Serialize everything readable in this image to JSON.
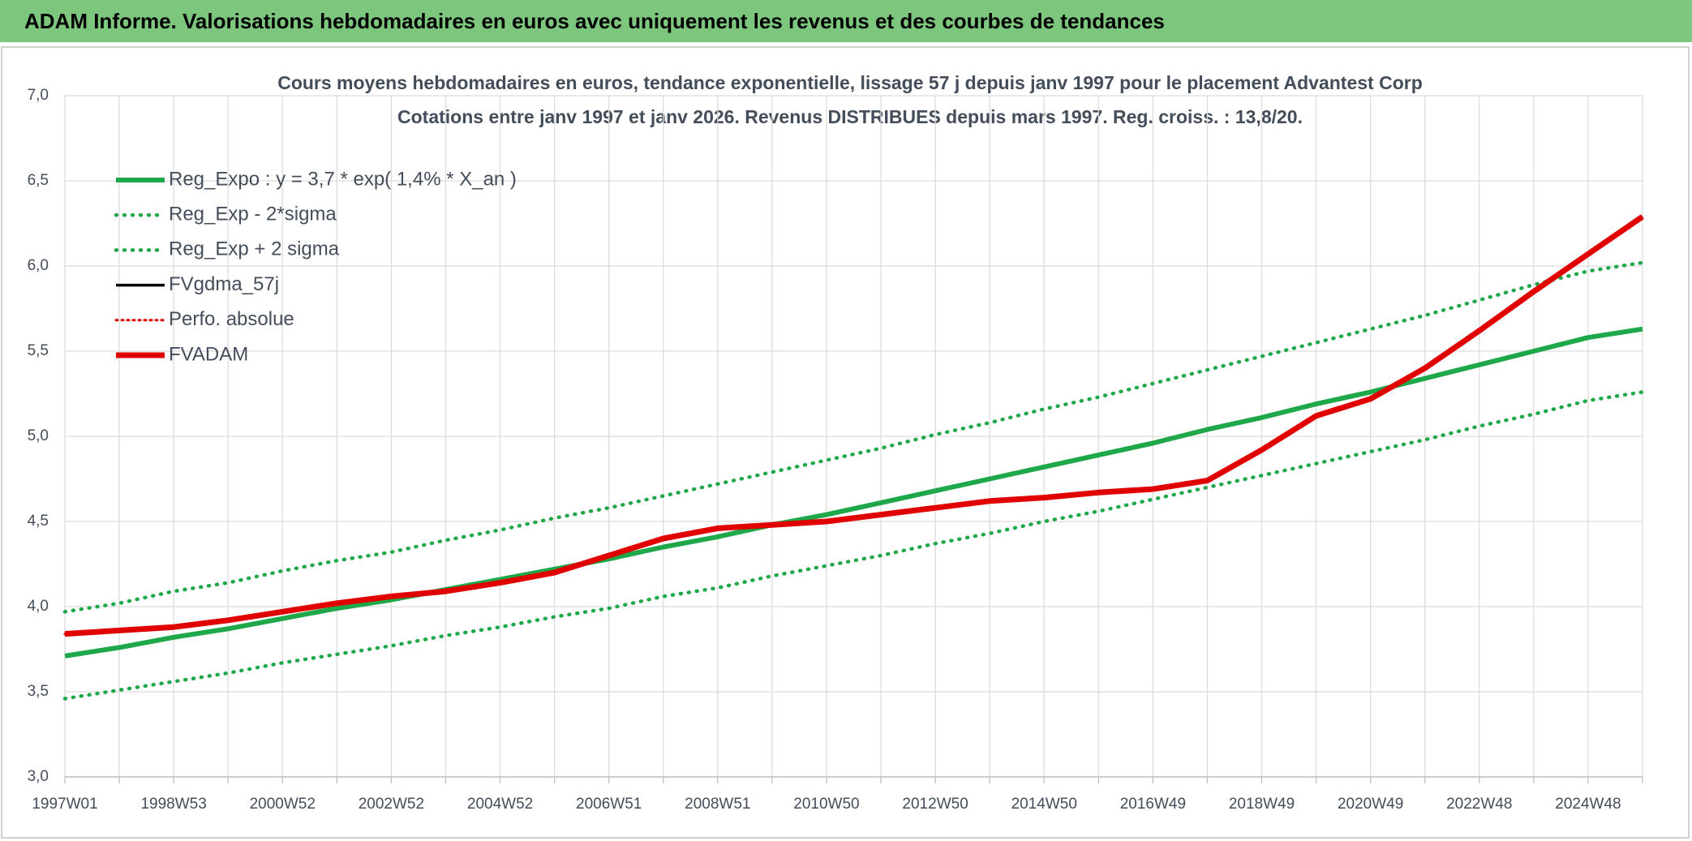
{
  "chart_data": {
    "type": "line",
    "header": "ADAM Informe. Valorisations hebdomadaires en euros avec uniquement les revenus et des courbes de tendances",
    "title": "Cours moyens hebdomadaires en euros, tendance exponentielle, lissage 57 j depuis janv 1997 pour le placement Advantest Corp",
    "subtitle": "Cotations entre janv 1997 et janv 2026. Revenus DISTRIBUES depuis mars 1997. Reg. croiss. : 13,8/20.",
    "categories": [
      "1997W01",
      null,
      "1998W53",
      null,
      "2000W52",
      null,
      "2002W52",
      null,
      "2004W52",
      null,
      "2006W51",
      null,
      "2008W51",
      null,
      "2010W50",
      null,
      "2012W50",
      null,
      "2014W50",
      null,
      "2016W49",
      null,
      "2018W49",
      null,
      "2020W49",
      null,
      "2022W48",
      null,
      "2024W48",
      null
    ],
    "ylim": [
      3,
      7
    ],
    "yticks": [
      {
        "value": 3,
        "label": "3,0"
      },
      {
        "value": 3.5,
        "label": "3,5"
      },
      {
        "value": 4,
        "label": "4,0"
      },
      {
        "value": 4.5,
        "label": "4,5"
      },
      {
        "value": 5,
        "label": "5,0"
      },
      {
        "value": 5.5,
        "label": "5,5"
      },
      {
        "value": 6,
        "label": "6,0"
      },
      {
        "value": 6.5,
        "label": "6,5"
      },
      {
        "value": 7,
        "label": "7,0"
      }
    ],
    "grid": true,
    "series": [
      {
        "name": "Reg_Expo : y = 3,7 * exp( 1,4% *  X_an )",
        "color": "#1fa84a",
        "dash": "solid",
        "values": [
          3.71,
          3.76,
          3.82,
          3.87,
          3.93,
          3.99,
          4.04,
          4.1,
          4.16,
          4.22,
          4.28,
          4.35,
          4.41,
          4.48,
          4.54,
          4.61,
          4.68,
          4.75,
          4.82,
          4.89,
          4.96,
          5.04,
          5.11,
          5.19,
          5.26,
          5.34,
          5.42,
          5.5,
          5.58,
          5.63
        ]
      },
      {
        "name": "Reg_Exp - 2*sigma",
        "color": "#1fa84a",
        "dash": "dotted",
        "values": [
          3.46,
          3.51,
          3.56,
          3.61,
          3.67,
          3.72,
          3.77,
          3.83,
          3.88,
          3.94,
          3.99,
          4.06,
          4.11,
          4.18,
          4.24,
          4.3,
          4.37,
          4.43,
          4.5,
          4.56,
          4.63,
          4.7,
          4.77,
          4.84,
          4.91,
          4.98,
          5.06,
          5.13,
          5.21,
          5.26
        ]
      },
      {
        "name": "Reg_Exp + 2 sigma",
        "color": "#1fa84a",
        "dash": "dotted",
        "values": [
          3.97,
          4.02,
          4.09,
          4.14,
          4.21,
          4.27,
          4.32,
          4.39,
          4.45,
          4.52,
          4.58,
          4.65,
          4.72,
          4.79,
          4.86,
          4.93,
          5.01,
          5.08,
          5.16,
          5.23,
          5.31,
          5.39,
          5.47,
          5.55,
          5.63,
          5.71,
          5.8,
          5.89,
          5.97,
          6.02
        ]
      },
      {
        "name": "FVgdma_57j",
        "color": "#000000",
        "dash": "solid",
        "values": [
          3.84,
          3.86,
          3.88,
          3.92,
          3.97,
          4.02,
          4.06,
          4.09,
          4.14,
          4.2,
          4.3,
          4.4,
          4.46,
          4.48,
          4.5,
          4.54,
          4.58,
          4.62,
          4.64,
          4.67,
          4.69,
          4.74,
          4.92,
          5.12,
          5.22,
          5.4,
          5.62,
          5.85,
          6.07,
          6.29
        ]
      },
      {
        "name": "Perfo. absolue",
        "color": "#e00000",
        "dash": "dotted",
        "values": [
          3.84,
          3.86,
          3.88,
          3.92,
          3.97,
          4.02,
          4.06,
          4.09,
          4.14,
          4.2,
          4.3,
          4.4,
          4.46,
          4.48,
          4.5,
          4.54,
          4.58,
          4.62,
          4.64,
          4.67,
          4.69,
          4.74,
          4.92,
          5.12,
          5.22,
          5.4,
          5.62,
          5.85,
          6.07,
          6.29
        ]
      },
      {
        "name": "FVADAM",
        "color": "#e00000",
        "dash": "solid",
        "values": [
          3.84,
          3.86,
          3.88,
          3.92,
          3.97,
          4.02,
          4.06,
          4.09,
          4.14,
          4.2,
          4.3,
          4.4,
          4.46,
          4.48,
          4.5,
          4.54,
          4.58,
          4.62,
          4.64,
          4.67,
          4.69,
          4.74,
          4.92,
          5.12,
          5.22,
          5.4,
          5.62,
          5.85,
          6.07,
          6.29
        ]
      }
    ]
  }
}
